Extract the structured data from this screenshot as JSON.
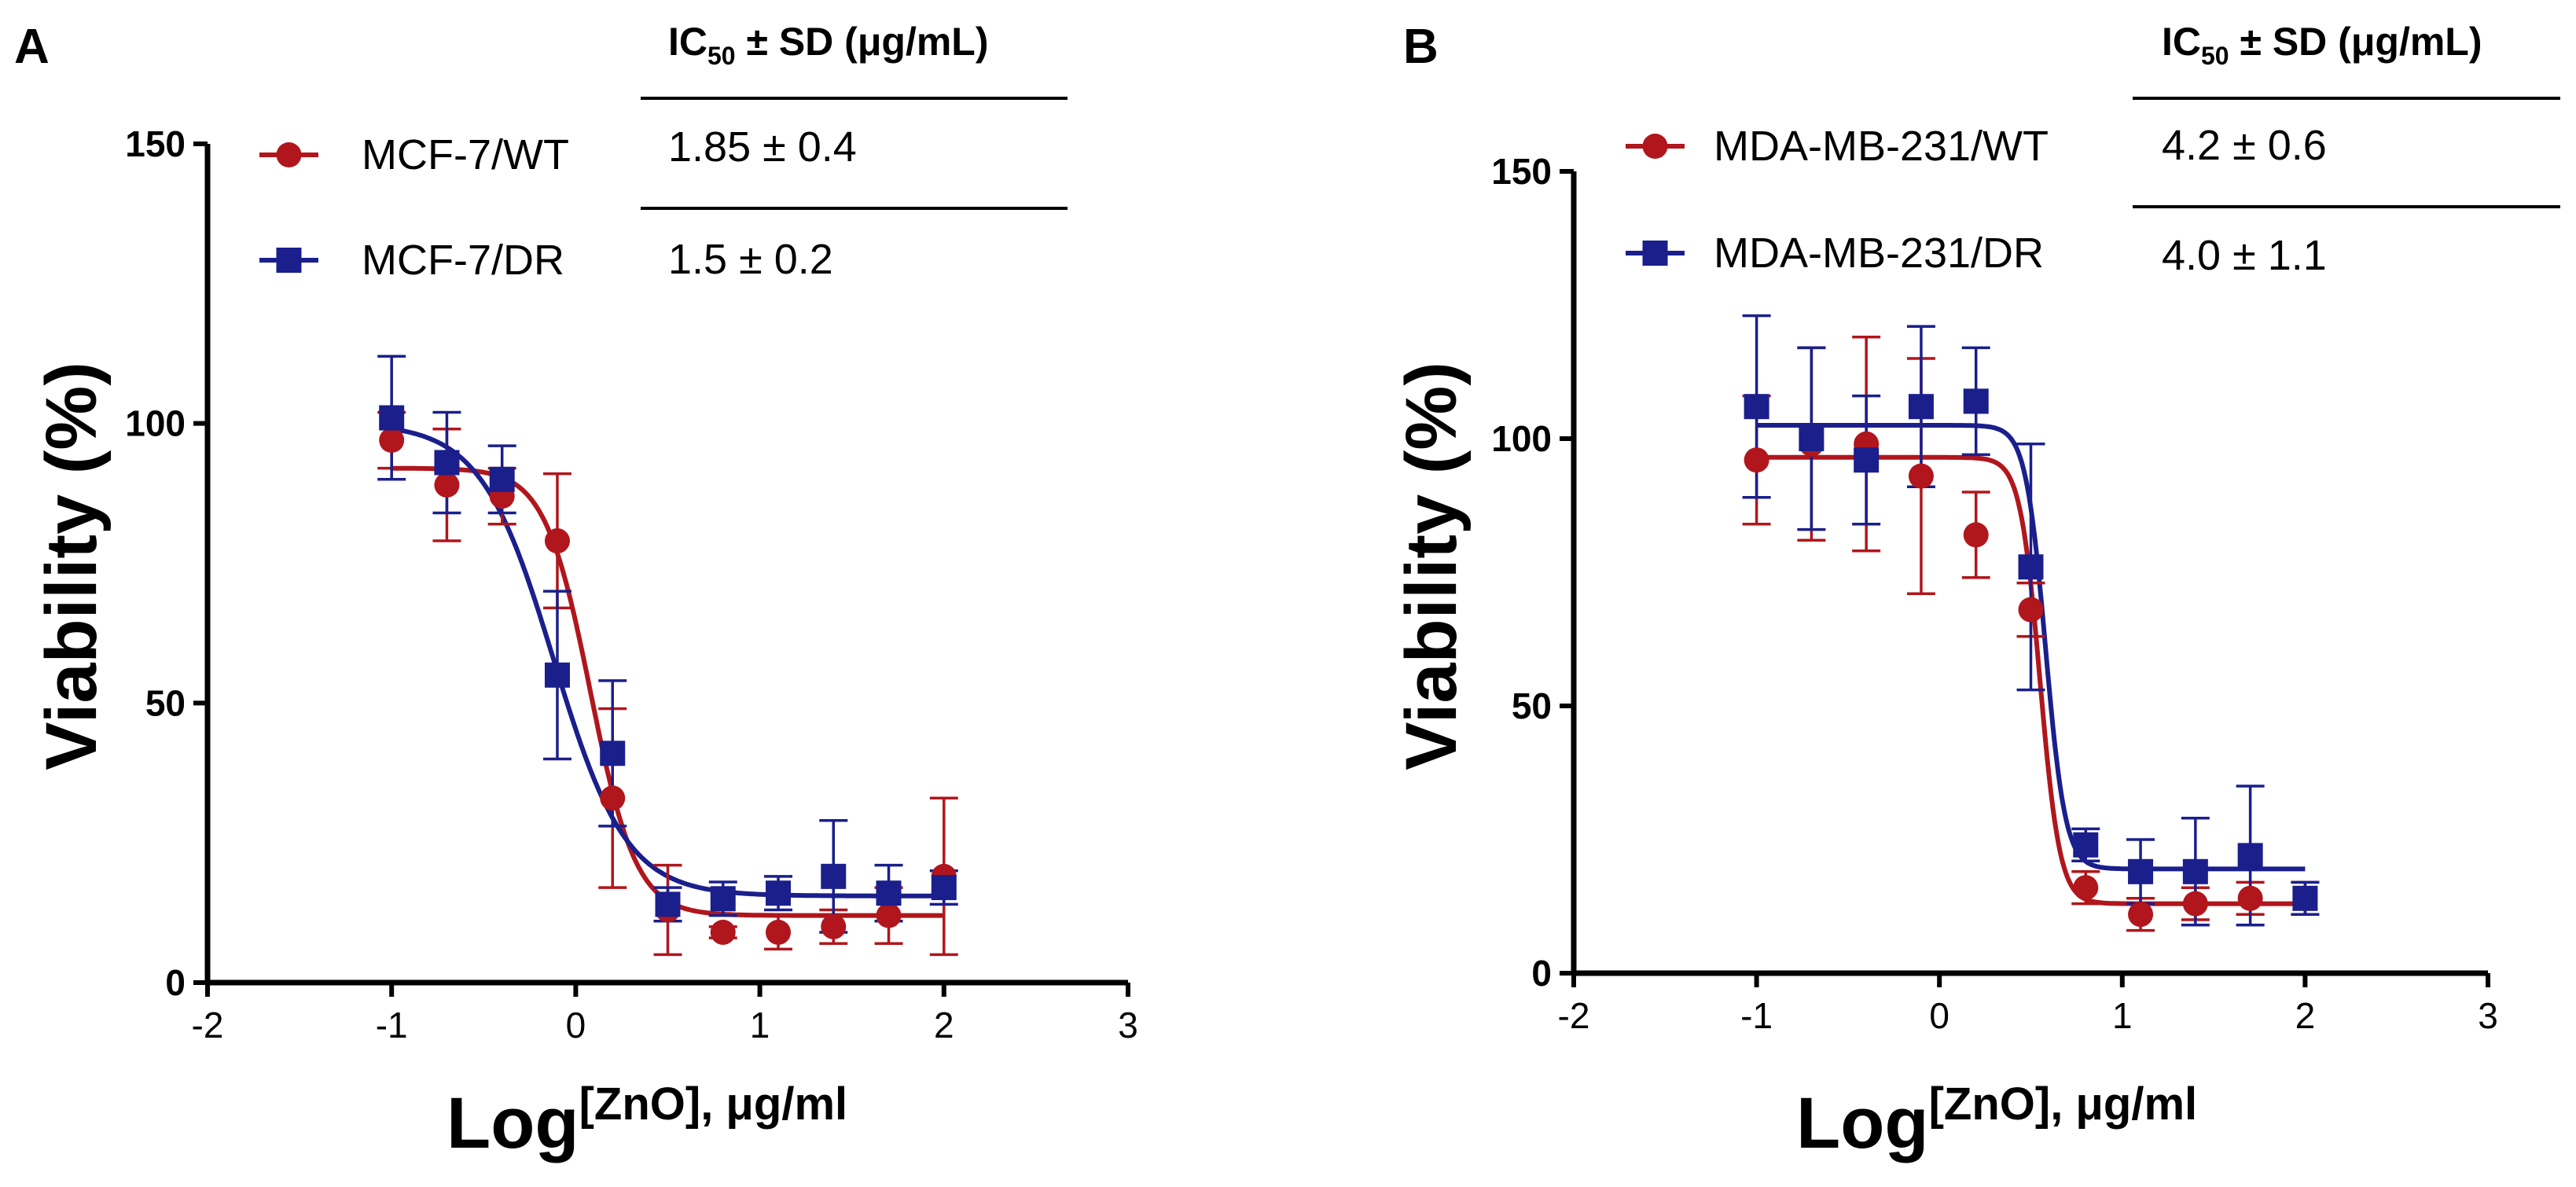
{
  "chart_data": [
    {
      "panel_label": "A",
      "type": "scatter",
      "xlabel_main": "Log",
      "xlabel_sup": "[ZnO]",
      "xlabel_unit": ", μg/ml",
      "ylabel": "Viability (%)",
      "xlim": [
        -2,
        3
      ],
      "ylim": [
        0,
        150
      ],
      "xticks": [
        -2,
        -1,
        0,
        1,
        2,
        3
      ],
      "yticks": [
        0,
        50,
        100,
        150
      ],
      "table_header_main": "IC",
      "table_header_sub": "50",
      "table_header_rest": " ± SD (μg/mL)",
      "series": [
        {
          "name": "MCF-7/WT",
          "ic50": "1.85 ± 0.4",
          "color": "#b0161c",
          "marker": "circle",
          "x": [
            -1,
            -0.7,
            -0.4,
            -0.1,
            0.2,
            0.5,
            0.8,
            1.1,
            1.4,
            1.7,
            2.0
          ],
          "y": [
            97,
            89,
            87,
            79,
            33,
            13,
            9,
            9,
            10,
            12,
            19
          ],
          "err": [
            5,
            10,
            5,
            12,
            16,
            8,
            1,
            3,
            3,
            5,
            14
          ],
          "fit": {
            "bottom": 12,
            "top": 92,
            "logec50": 0.08,
            "hill": -3.5
          }
        },
        {
          "name": "MCF-7/DR",
          "ic50": "1.5 ± 0.2",
          "color": "#1a1f8c",
          "marker": "square",
          "x": [
            -1,
            -0.7,
            -0.4,
            -0.1,
            0.2,
            0.5,
            0.8,
            1.1,
            1.4,
            1.7,
            2.0
          ],
          "y": [
            101,
            93,
            90,
            55,
            41,
            14,
            15,
            16,
            19,
            16,
            17
          ],
          "err": [
            11,
            9,
            6,
            15,
            13,
            3,
            3,
            3,
            10,
            5,
            3
          ],
          "fit": {
            "bottom": 15.5,
            "top": 100,
            "logec50": -0.12,
            "hill": -2.2
          }
        }
      ]
    },
    {
      "panel_label": "B",
      "type": "scatter",
      "xlabel_main": "Log",
      "xlabel_sup": "[ZnO]",
      "xlabel_unit": ", μg/ml",
      "ylabel": "Viability (%)",
      "xlim": [
        -2,
        3
      ],
      "ylim": [
        0,
        150
      ],
      "xticks": [
        -2,
        -1,
        0,
        1,
        2,
        3
      ],
      "yticks": [
        0,
        50,
        100,
        150
      ],
      "table_header_main": "IC",
      "table_header_sub": "50",
      "table_header_rest": " ± SD (μg/mL)",
      "series": [
        {
          "name": "MDA-MB-231/WT",
          "ic50": "4.2 ± 0.6",
          "color": "#b0161c",
          "marker": "circle",
          "x": [
            -1,
            -0.7,
            -0.4,
            -0.1,
            0.2,
            0.5,
            0.8,
            1.1,
            1.4,
            1.7,
            2.0
          ],
          "y": [
            96,
            99,
            99,
            93,
            82,
            68,
            16,
            11,
            13,
            14,
            14
          ],
          "err": [
            12,
            18,
            20,
            22,
            8,
            5,
            3,
            3,
            3,
            3,
            3
          ],
          "fit": {
            "bottom": 13,
            "top": 96.5,
            "logec50": 0.55,
            "hill": -8
          }
        },
        {
          "name": "MDA-MB-231/DR",
          "ic50": "4.0 ± 1.1",
          "color": "#1a1f8c",
          "marker": "square",
          "x": [
            -1,
            -0.7,
            -0.4,
            -0.1,
            0.2,
            0.5,
            0.8,
            1.1,
            1.4,
            1.7,
            2.0
          ],
          "y": [
            106,
            100,
            96,
            106,
            107,
            76,
            24,
            19,
            19,
            22,
            14
          ],
          "err": [
            17,
            17,
            12,
            15,
            10,
            23,
            3,
            6,
            10,
            13,
            3
          ],
          "fit": {
            "bottom": 19.5,
            "top": 102.5,
            "logec50": 0.58,
            "hill": -8
          }
        }
      ]
    }
  ]
}
